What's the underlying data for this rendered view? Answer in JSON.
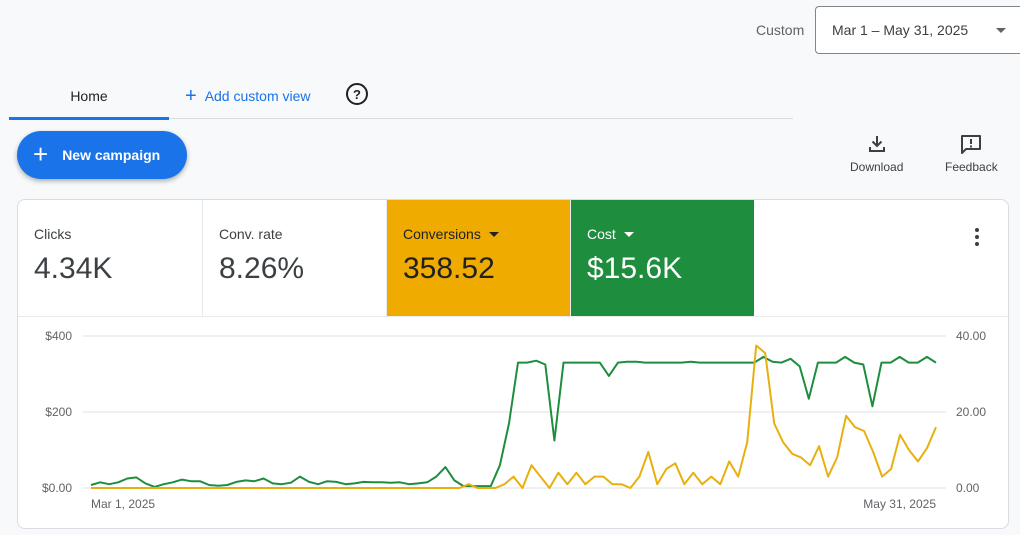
{
  "date_range": {
    "label": "Custom",
    "value": "Mar 1 – May 31, 2025"
  },
  "tabs": {
    "home": "Home",
    "add_view": "Add custom view",
    "help": "?"
  },
  "actions": {
    "new_campaign": "New campaign",
    "download": "Download",
    "feedback": "Feedback"
  },
  "metrics": [
    {
      "label": "Clicks",
      "value": "4.34K"
    },
    {
      "label": "Conv. rate",
      "value": "8.26%"
    },
    {
      "label": "Conversions",
      "value": "358.52"
    },
    {
      "label": "Cost",
      "value": "$15.6K"
    }
  ],
  "colors": {
    "primary": "#1a73e8",
    "conversions": "#f0ab00",
    "cost": "#1e8e3e",
    "cost_line": "#1e8e3e",
    "conv_line": "#e8b00f"
  },
  "chart_data": {
    "type": "line",
    "x_labels": [
      "Mar 1, 2025",
      "May 31, 2025"
    ],
    "left_axis": {
      "ticks": [
        "$0.00",
        "$200",
        "$400"
      ],
      "ylim": [
        0,
        400
      ]
    },
    "right_axis": {
      "ticks": [
        "0.00",
        "20.00",
        "40.00"
      ],
      "ylim": [
        0,
        40
      ]
    },
    "grid": true,
    "series": [
      {
        "axis": "left",
        "values": [
          8,
          15,
          10,
          15,
          25,
          28,
          12,
          3,
          10,
          15,
          22,
          18,
          18,
          8,
          6,
          8,
          16,
          20,
          18,
          25,
          12,
          10,
          14,
          30,
          16,
          10,
          18,
          16,
          10,
          12,
          16,
          15,
          15,
          14,
          15,
          10,
          12,
          15,
          30,
          55,
          20,
          5,
          5,
          5,
          5,
          60,
          170,
          330,
          330,
          335,
          325,
          125,
          330,
          330,
          330,
          330,
          330,
          295,
          330,
          332,
          332,
          330,
          330,
          330,
          330,
          330,
          332,
          330,
          330,
          330,
          330,
          330,
          330,
          330,
          345,
          332,
          330,
          340,
          320,
          235,
          330,
          330,
          330,
          345,
          330,
          325,
          215,
          330,
          330,
          345,
          330,
          330,
          345,
          330
        ]
      },
      {
        "axis": "right",
        "values": [
          0,
          0,
          0,
          0,
          0,
          0,
          0,
          0,
          0,
          0,
          0,
          0,
          0,
          0,
          0,
          0,
          0,
          0,
          0,
          0,
          0,
          0,
          0,
          0,
          0,
          0,
          0,
          0,
          0,
          0,
          0,
          0,
          0,
          0,
          0,
          0,
          0,
          0,
          0,
          0,
          0,
          0,
          1,
          0,
          0,
          0,
          1,
          3,
          0,
          6,
          3,
          0,
          4,
          1,
          4,
          1,
          3,
          3,
          1,
          1,
          0,
          3,
          9.5,
          1,
          5,
          6.5,
          1,
          4,
          1,
          3,
          1,
          7,
          3,
          12,
          37.5,
          35.5,
          17,
          12,
          9,
          8,
          6,
          11,
          3,
          8,
          19,
          16,
          15,
          9.5,
          3,
          5,
          14,
          10,
          7,
          10.5,
          16
        ]
      }
    ]
  }
}
